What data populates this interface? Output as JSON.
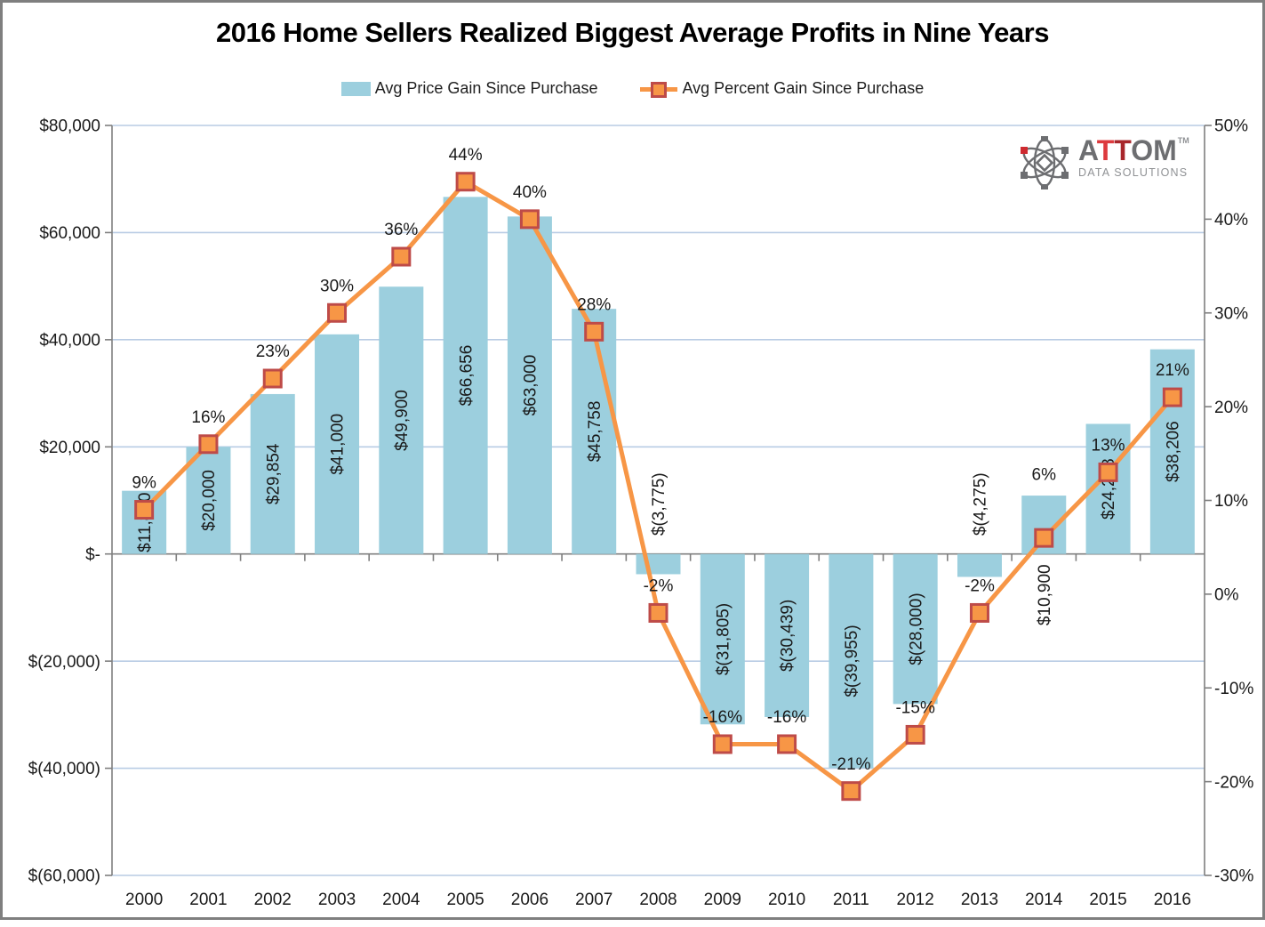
{
  "title": "2016 Home Sellers Realized Biggest Average Profits in Nine Years",
  "legend": [
    {
      "label": "Avg Price Gain Since Purchase",
      "type": "bar",
      "color": "#9CCFDE"
    },
    {
      "label": "Avg Percent Gain Since Purchase",
      "type": "line",
      "color": "#F79646",
      "marker_border": "#BE4B48"
    }
  ],
  "logo": {
    "brand": "ATTOM",
    "letters": [
      {
        "ch": "A",
        "color": "#6D6E71"
      },
      {
        "ch": "T",
        "color": "#DD3A3E"
      },
      {
        "ch": "T",
        "color": "#A8262B"
      },
      {
        "ch": "O",
        "color": "#6D6E71"
      },
      {
        "ch": "M",
        "color": "#6D6E71"
      }
    ],
    "trademark": "TM",
    "tagline": "DATA SOLUTIONS",
    "icon_gray": "#6D6E71",
    "icon_red": "#CE2A30"
  },
  "chart_data": {
    "type": "combo",
    "categories": [
      "2000",
      "2001",
      "2002",
      "2003",
      "2004",
      "2005",
      "2006",
      "2007",
      "2008",
      "2009",
      "2010",
      "2011",
      "2012",
      "2013",
      "2014",
      "2015",
      "2016"
    ],
    "series": [
      {
        "name": "Avg Price Gain Since Purchase",
        "type": "bar",
        "axis": "left",
        "color": "#9CCFDE",
        "values": [
          11800,
          20000,
          29854,
          41000,
          49900,
          66656,
          63000,
          45758,
          -3775,
          -31805,
          -30439,
          -39955,
          -28000,
          -4275,
          10900,
          24288,
          38206
        ],
        "labels": [
          "$11,800",
          "$20,000",
          "$29,854",
          "$41,000",
          "$49,900",
          "$66,656",
          "$63,000",
          "$45,758",
          "$(3,775)",
          "$(31,805)",
          "$(30,439)",
          "$(39,955)",
          "$(28,000)",
          "$(4,275)",
          "$10,900",
          "$24,288",
          "$38,206"
        ]
      },
      {
        "name": "Avg Percent Gain Since Purchase",
        "type": "line",
        "axis": "right",
        "color": "#F79646",
        "marker_fill": "#F79646",
        "marker_border": "#BE4B48",
        "values": [
          9,
          16,
          23,
          30,
          36,
          44,
          40,
          28,
          -2,
          -16,
          -16,
          -21,
          -15,
          -2,
          6,
          13,
          21
        ],
        "labels": [
          "9%",
          "16%",
          "23%",
          "30%",
          "36%",
          "44%",
          "40%",
          "28%",
          "-2%",
          "-16%",
          "-16%",
          "-21%",
          "-15%",
          "-2%",
          "6%",
          "13%",
          "21%"
        ]
      }
    ],
    "left_axis": {
      "min": -60000,
      "max": 80000,
      "tick_step": 20000,
      "tick_values": [
        80000,
        60000,
        40000,
        20000,
        0,
        -20000,
        -40000,
        -60000
      ],
      "tick_labels": [
        "$80,000",
        "$60,000",
        "$40,000",
        "$20,000",
        "$-",
        "$(20,000)",
        "$(40,000)",
        "$(60,000)"
      ]
    },
    "right_axis": {
      "min": -30,
      "max": 50,
      "tick_step": 10,
      "tick_values": [
        50,
        40,
        30,
        20,
        10,
        0,
        -10,
        -20,
        -30
      ],
      "tick_labels": [
        "50%",
        "40%",
        "30%",
        "20%",
        "10%",
        "0%",
        "-10%",
        "-20%",
        "-30%"
      ]
    },
    "grid": true,
    "legend_position": "top",
    "colors": {
      "gridline": "#B9CCE4",
      "axis": "#7F7F7F",
      "label_text": "#1a1a1a"
    }
  }
}
